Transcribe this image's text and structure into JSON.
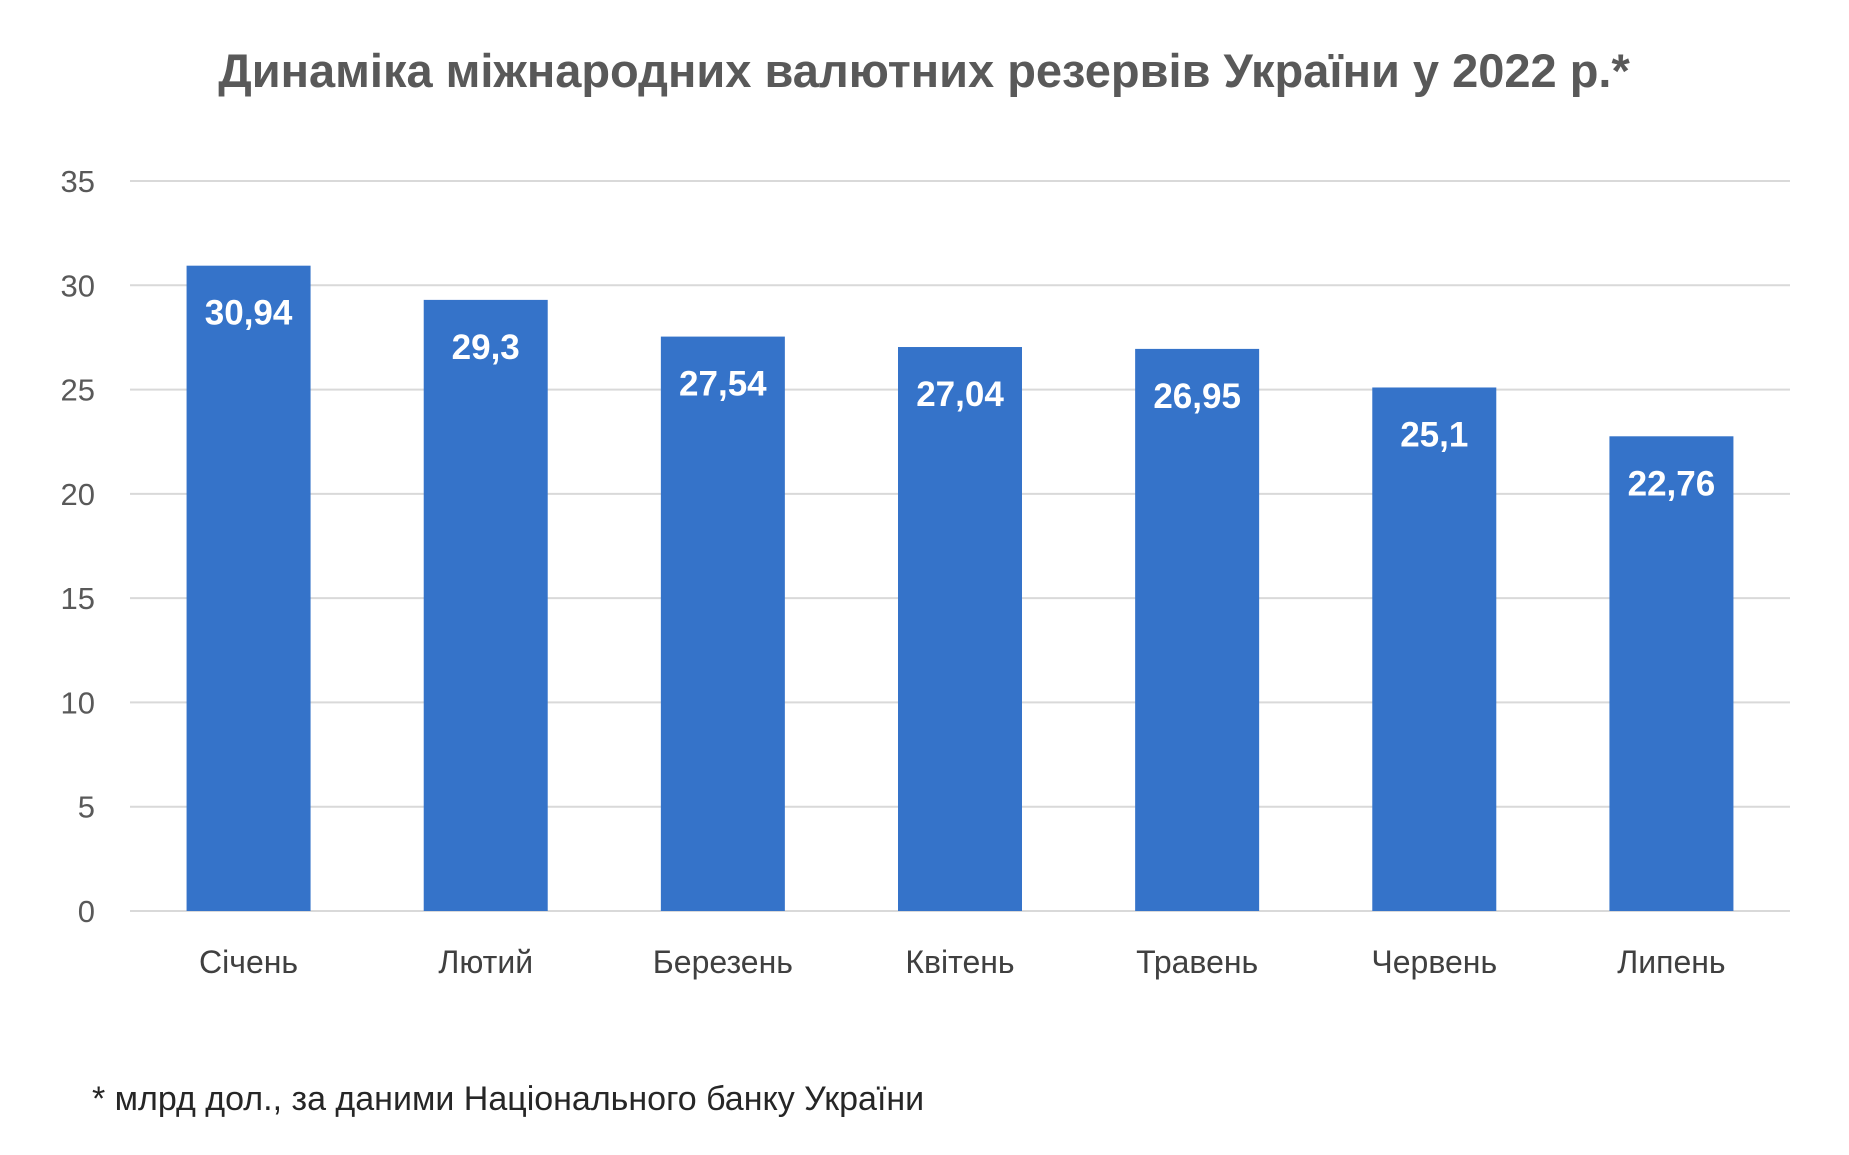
{
  "chart_data": {
    "type": "bar",
    "title": "Динаміка міжнародних валютних резервів України у 2022 р.*",
    "categories": [
      "Січень",
      "Лютий",
      "Березень",
      "Квітень",
      "Травень",
      "Червень",
      "Липень"
    ],
    "values": [
      30.94,
      29.3,
      27.54,
      27.04,
      26.95,
      25.1,
      22.76
    ],
    "value_labels": [
      "30,94",
      "29,3",
      "27,54",
      "27,04",
      "26,95",
      "25,1",
      "22,76"
    ],
    "xlabel": "",
    "ylabel": "",
    "ylim": [
      0,
      35
    ],
    "yticks": [
      0,
      5,
      10,
      15,
      20,
      25,
      30,
      35
    ],
    "grid": true,
    "legend": "none",
    "bar_color": "#3573c9",
    "grid_color": "#d9d9d9",
    "footnote": "* млрд дол., за даними Національного банку України"
  }
}
